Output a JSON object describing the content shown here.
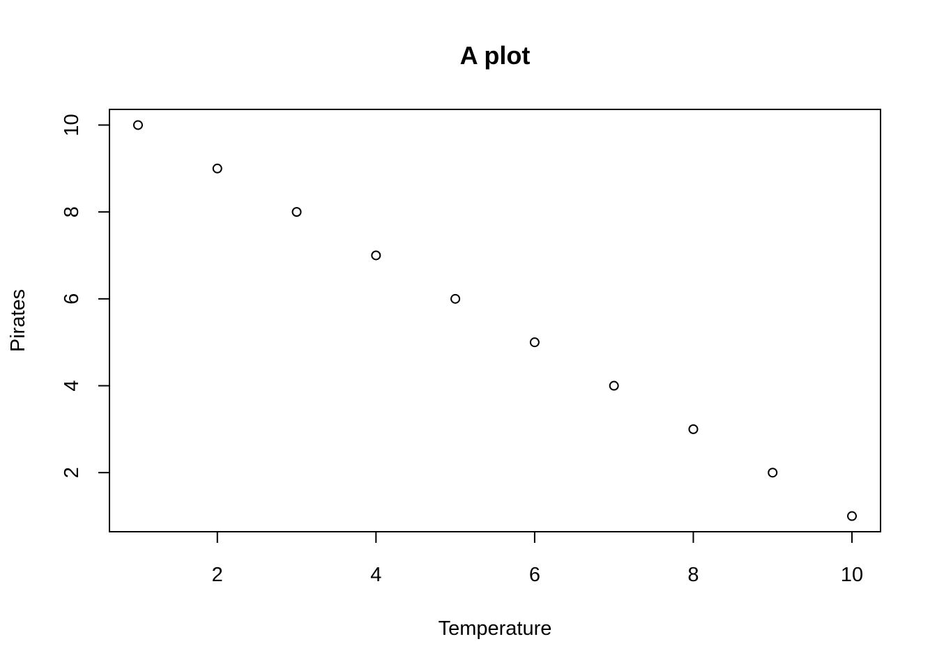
{
  "chart_data": {
    "type": "scatter",
    "title": "A plot",
    "xlabel": "Temperature",
    "ylabel": "Pirates",
    "xlim": [
      0.64,
      10.36
    ],
    "ylim": [
      0.64,
      10.36
    ],
    "x_ticks": [
      2,
      4,
      6,
      8,
      10
    ],
    "y_ticks": [
      2,
      4,
      6,
      8,
      10
    ],
    "grid": false,
    "marker": "open-circle",
    "color": "#000000",
    "series": [
      {
        "x": [
          1,
          2,
          3,
          4,
          5,
          6,
          7,
          8,
          9,
          10
        ],
        "y": [
          10,
          9,
          8,
          7,
          6,
          5,
          4,
          3,
          2,
          1
        ]
      }
    ]
  }
}
